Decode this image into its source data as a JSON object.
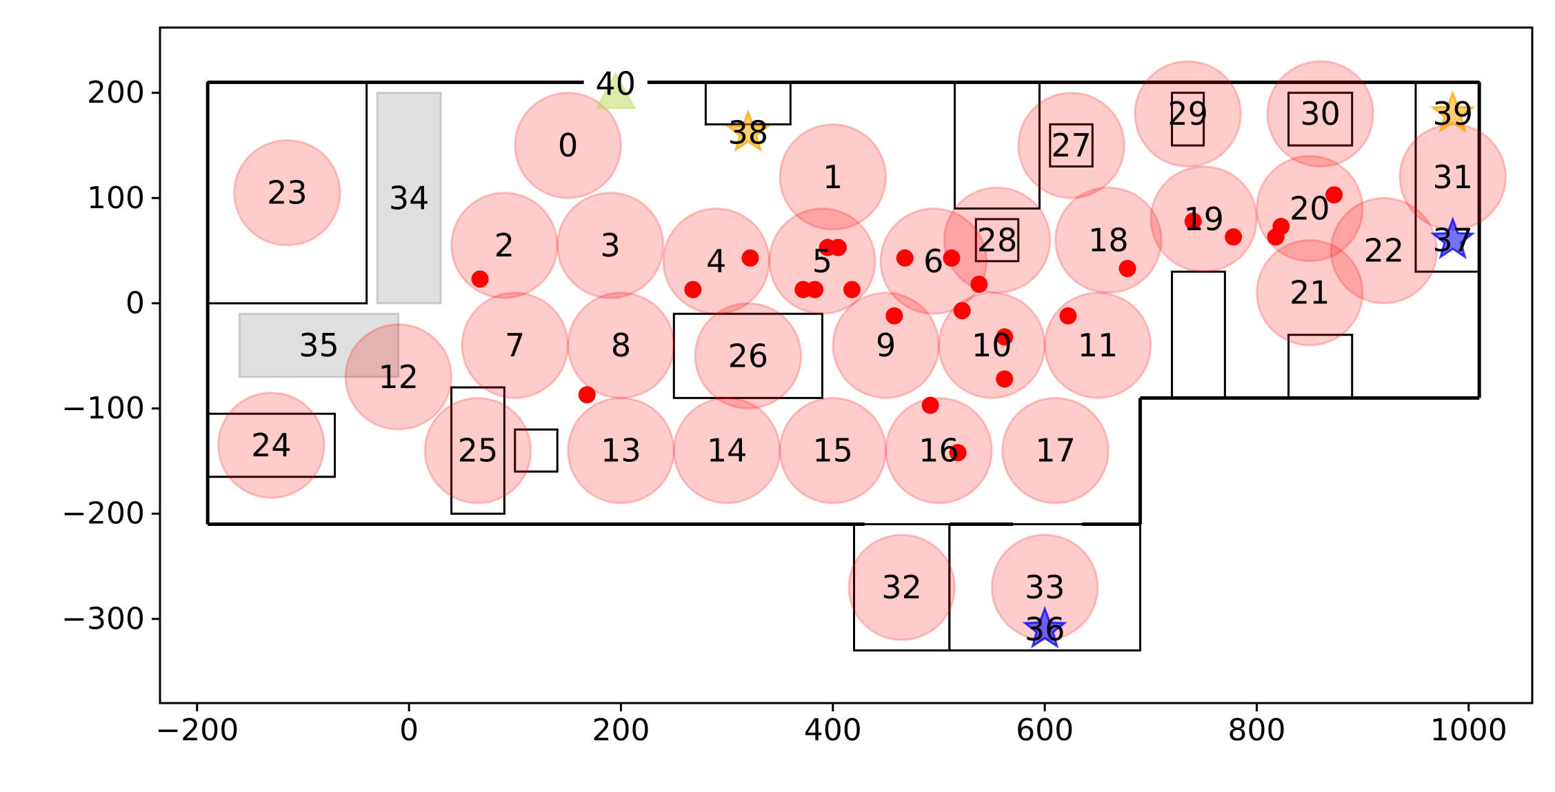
{
  "chart_data": {
    "type": "scatter",
    "title": "",
    "xlabel": "",
    "ylabel": "",
    "xlim": [
      -235,
      1060
    ],
    "ylim": [
      -380,
      262
    ],
    "xticks": [
      -200,
      0,
      200,
      400,
      600,
      800,
      1000
    ],
    "yticks": [
      200,
      100,
      0,
      -100,
      -200,
      -300
    ],
    "colors": {
      "zone_fill": "#ff0000",
      "point": "#ff0000",
      "gray_block": "#b0b0b0",
      "orange_star": "#ffa500",
      "blue_star": "#0000ff",
      "triangle": "#bada55",
      "line": "#000000"
    },
    "zones": [
      {
        "label": "0",
        "x": 150,
        "y": 150,
        "r": 50
      },
      {
        "label": "1",
        "x": 400,
        "y": 120,
        "r": 50
      },
      {
        "label": "2",
        "x": 90,
        "y": 55,
        "r": 50
      },
      {
        "label": "3",
        "x": 190,
        "y": 55,
        "r": 50
      },
      {
        "label": "4",
        "x": 290,
        "y": 40,
        "r": 50
      },
      {
        "label": "5",
        "x": 390,
        "y": 40,
        "r": 50
      },
      {
        "label": "6",
        "x": 495,
        "y": 40,
        "r": 50
      },
      {
        "label": "7",
        "x": 100,
        "y": -40,
        "r": 50
      },
      {
        "label": "8",
        "x": 200,
        "y": -40,
        "r": 50
      },
      {
        "label": "9",
        "x": 450,
        "y": -40,
        "r": 50
      },
      {
        "label": "10",
        "x": 550,
        "y": -40,
        "r": 50
      },
      {
        "label": "11",
        "x": 650,
        "y": -40,
        "r": 50
      },
      {
        "label": "12",
        "x": -10,
        "y": -70,
        "r": 50
      },
      {
        "label": "13",
        "x": 200,
        "y": -140,
        "r": 50
      },
      {
        "label": "14",
        "x": 300,
        "y": -140,
        "r": 50
      },
      {
        "label": "15",
        "x": 400,
        "y": -140,
        "r": 50
      },
      {
        "label": "16",
        "x": 500,
        "y": -140,
        "r": 50
      },
      {
        "label": "17",
        "x": 610,
        "y": -140,
        "r": 50
      },
      {
        "label": "18",
        "x": 660,
        "y": 60,
        "r": 50
      },
      {
        "label": "19",
        "x": 750,
        "y": 80,
        "r": 50
      },
      {
        "label": "20",
        "x": 850,
        "y": 90,
        "r": 50
      },
      {
        "label": "21",
        "x": 850,
        "y": 10,
        "r": 50
      },
      {
        "label": "22",
        "x": 920,
        "y": 50,
        "r": 50
      },
      {
        "label": "23",
        "x": -115,
        "y": 105,
        "r": 50
      },
      {
        "label": "24",
        "x": -130,
        "y": -135,
        "r": 50
      },
      {
        "label": "25",
        "x": 65,
        "y": -140,
        "r": 50
      },
      {
        "label": "26",
        "x": 320,
        "y": -50,
        "r": 50
      },
      {
        "label": "27",
        "x": 625,
        "y": 150,
        "r": 50
      },
      {
        "label": "28",
        "x": 555,
        "y": 60,
        "r": 50
      },
      {
        "label": "29",
        "x": 735,
        "y": 180,
        "r": 50
      },
      {
        "label": "30",
        "x": 860,
        "y": 180,
        "r": 50
      },
      {
        "label": "31",
        "x": 985,
        "y": 120,
        "r": 50
      },
      {
        "label": "32",
        "x": 465,
        "y": -270,
        "r": 50
      },
      {
        "label": "33",
        "x": 600,
        "y": -270,
        "r": 50
      }
    ],
    "points": [
      {
        "x": 67,
        "y": 23
      },
      {
        "x": 268,
        "y": 13
      },
      {
        "x": 322,
        "y": 43
      },
      {
        "x": 372,
        "y": 13
      },
      {
        "x": 383,
        "y": 13
      },
      {
        "x": 395,
        "y": 53
      },
      {
        "x": 405,
        "y": 53
      },
      {
        "x": 418,
        "y": 13
      },
      {
        "x": 468,
        "y": 43
      },
      {
        "x": 458,
        "y": -12
      },
      {
        "x": 512,
        "y": 43
      },
      {
        "x": 522,
        "y": -7
      },
      {
        "x": 538,
        "y": 18
      },
      {
        "x": 562,
        "y": -32
      },
      {
        "x": 562,
        "y": -72
      },
      {
        "x": 492,
        "y": -97
      },
      {
        "x": 518,
        "y": -142
      },
      {
        "x": 622,
        "y": -12
      },
      {
        "x": 678,
        "y": 33
      },
      {
        "x": 740,
        "y": 78
      },
      {
        "x": 778,
        "y": 63
      },
      {
        "x": 818,
        "y": 63
      },
      {
        "x": 823,
        "y": 73
      },
      {
        "x": 873,
        "y": 103
      },
      {
        "x": 168,
        "y": -87
      }
    ],
    "gray_blocks": [
      {
        "label": "34",
        "x0": -30,
        "x1": 30,
        "y0": 0,
        "y1": 200
      },
      {
        "label": "35",
        "x0": -160,
        "x1": -10,
        "y0": -70,
        "y1": -10
      }
    ],
    "markers": [
      {
        "label": "36",
        "shape": "star",
        "color": "blue",
        "x": 600,
        "y": -310
      },
      {
        "label": "37",
        "shape": "star",
        "color": "blue",
        "x": 985,
        "y": 60
      },
      {
        "label": "38",
        "shape": "star",
        "color": "orange",
        "x": 320,
        "y": 162
      },
      {
        "label": "39",
        "shape": "star",
        "color": "orange",
        "x": 985,
        "y": 180
      },
      {
        "label": "40",
        "shape": "triangle",
        "color": "green",
        "x": 195,
        "y": 200
      }
    ],
    "walls": [
      [
        [
          -190,
          210
        ],
        [
          165,
          210
        ]
      ],
      [
        [
          225,
          210
        ],
        [
          1010,
          210
        ]
      ],
      [
        [
          -190,
          210
        ],
        [
          -190,
          -210
        ]
      ],
      [
        [
          -190,
          -210
        ],
        [
          430,
          -210
        ]
      ],
      [
        [
          510,
          -210
        ],
        [
          570,
          -210
        ]
      ],
      [
        [
          635,
          -210
        ],
        [
          690,
          -210
        ]
      ],
      [
        [
          690,
          -210
        ],
        [
          690,
          -90
        ]
      ],
      [
        [
          690,
          -90
        ],
        [
          1010,
          -90
        ]
      ],
      [
        [
          1010,
          -90
        ],
        [
          1010,
          210
        ]
      ]
    ],
    "rooms": [
      [
        [
          -190,
          210
        ],
        [
          -40,
          210
        ],
        [
          -40,
          0
        ],
        [
          -190,
          0
        ]
      ],
      [
        [
          -190,
          -105
        ],
        [
          -70,
          -105
        ],
        [
          -70,
          -165
        ],
        [
          -190,
          -165
        ]
      ],
      [
        [
          40,
          -80
        ],
        [
          90,
          -80
        ],
        [
          90,
          -200
        ],
        [
          40,
          -200
        ]
      ],
      [
        [
          100,
          -120
        ],
        [
          140,
          -120
        ],
        [
          140,
          -160
        ],
        [
          100,
          -160
        ]
      ],
      [
        [
          250,
          -10
        ],
        [
          390,
          -10
        ],
        [
          390,
          -90
        ],
        [
          250,
          -90
        ]
      ],
      [
        [
          280,
          210
        ],
        [
          360,
          210
        ],
        [
          360,
          170
        ],
        [
          280,
          170
        ]
      ],
      [
        [
          515,
          210
        ],
        [
          595,
          210
        ],
        [
          595,
          90
        ],
        [
          515,
          90
        ]
      ],
      [
        [
          605,
          170
        ],
        [
          645,
          170
        ],
        [
          645,
          130
        ],
        [
          605,
          130
        ]
      ],
      [
        [
          535,
          80
        ],
        [
          575,
          80
        ],
        [
          575,
          40
        ],
        [
          535,
          40
        ]
      ],
      [
        [
          720,
          200
        ],
        [
          750,
          200
        ],
        [
          750,
          150
        ],
        [
          720,
          150
        ]
      ],
      [
        [
          830,
          200
        ],
        [
          890,
          200
        ],
        [
          890,
          150
        ],
        [
          830,
          150
        ]
      ],
      [
        [
          950,
          210
        ],
        [
          1010,
          210
        ],
        [
          1010,
          30
        ],
        [
          950,
          30
        ]
      ],
      [
        [
          720,
          30
        ],
        [
          770,
          30
        ],
        [
          770,
          -90
        ],
        [
          720,
          -90
        ]
      ],
      [
        [
          830,
          -30
        ],
        [
          890,
          -30
        ],
        [
          890,
          -90
        ],
        [
          830,
          -90
        ]
      ],
      [
        [
          420,
          -210
        ],
        [
          420,
          -330
        ],
        [
          510,
          -330
        ],
        [
          510,
          -210
        ]
      ],
      [
        [
          510,
          -210
        ],
        [
          510,
          -330
        ],
        [
          690,
          -330
        ],
        [
          690,
          -210
        ]
      ]
    ]
  }
}
